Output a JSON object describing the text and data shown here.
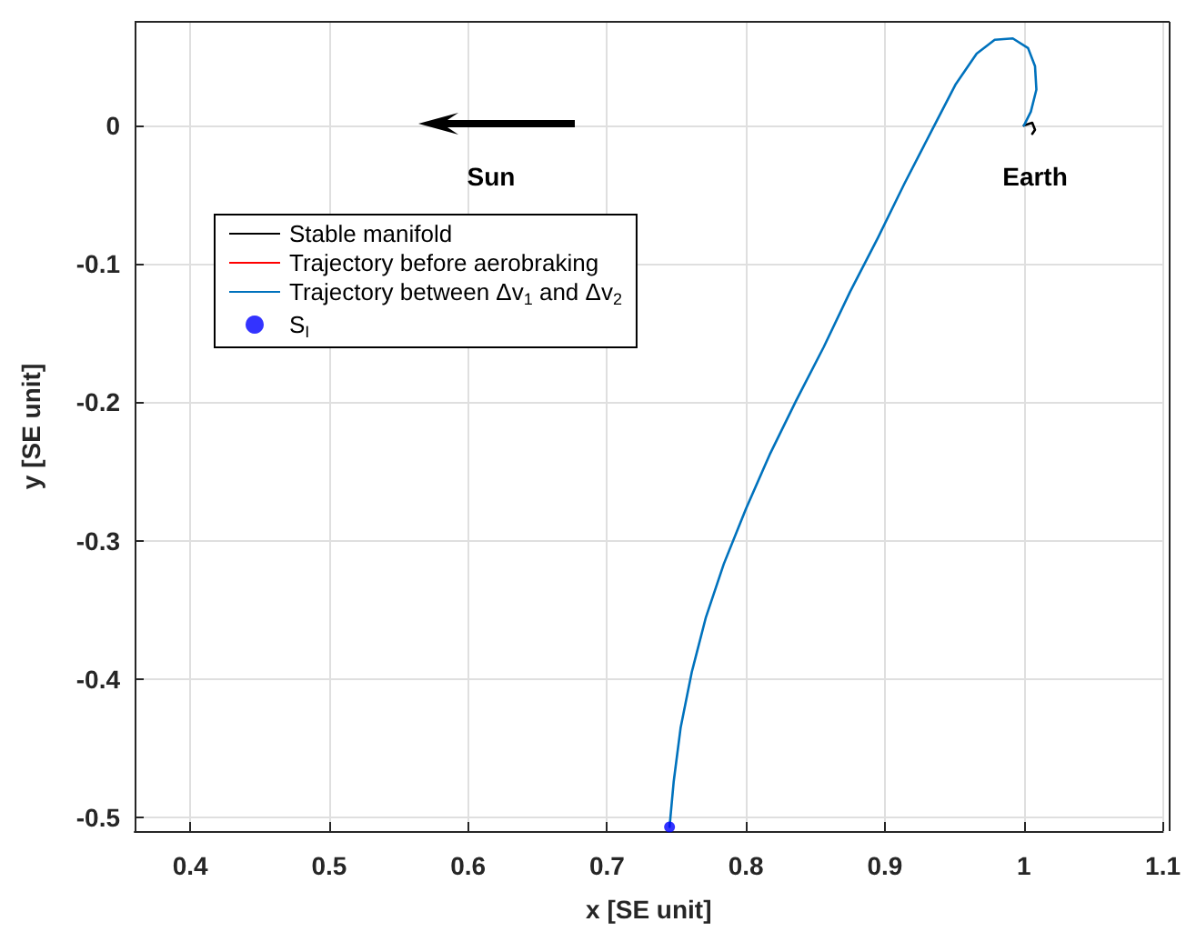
{
  "chart_data": {
    "type": "line",
    "xlabel": "x [SE unit]",
    "ylabel": "y [SE unit]",
    "xlim": [
      0.36,
      1.1
    ],
    "ylim": [
      -0.51,
      0.075
    ],
    "xticks": [
      0.4,
      0.5,
      0.6,
      0.7,
      0.8,
      0.9,
      1,
      1.1
    ],
    "yticks": [
      -0.5,
      -0.4,
      -0.3,
      -0.2,
      -0.1,
      0
    ],
    "grid": true,
    "legend": "top left",
    "line_style": "solid",
    "annotations": [
      "Sun",
      "Earth"
    ],
    "series": [
      {
        "name": "Stable manifold",
        "color": "#000000",
        "marker": "none",
        "x": [
          1.0,
          1.006,
          1.008,
          1.006
        ],
        "values": [
          0.0,
          0.002,
          -0.003,
          -0.006
        ]
      },
      {
        "name": "Trajectory before aerobraking",
        "color": "#ff0000",
        "marker": "none"
      },
      {
        "name": "Trajectory between Δv$_{1}$ and Δv$_{2}$",
        "color": "#0072bd",
        "marker": "none",
        "x": [
          0.745,
          0.748,
          0.753,
          0.761,
          0.771,
          0.784,
          0.8,
          0.817,
          0.836,
          0.856,
          0.875,
          0.895,
          0.914,
          0.934,
          0.951,
          0.966,
          0.979,
          0.992,
          1.003,
          1.008,
          1.009,
          1.005,
          1.0
        ],
        "values": [
          -0.507,
          -0.474,
          -0.435,
          -0.395,
          -0.356,
          -0.317,
          -0.277,
          -0.238,
          -0.199,
          -0.16,
          -0.12,
          -0.081,
          -0.042,
          -0.003,
          0.03,
          0.052,
          0.062,
          0.063,
          0.056,
          0.043,
          0.026,
          0.01,
          0.0
        ]
      },
      {
        "name": "S$_{I}$",
        "color": "#0000ff",
        "type": "scatter",
        "marker": "circle",
        "x": [
          0.745
        ],
        "values": [
          -0.507
        ]
      }
    ]
  }
}
